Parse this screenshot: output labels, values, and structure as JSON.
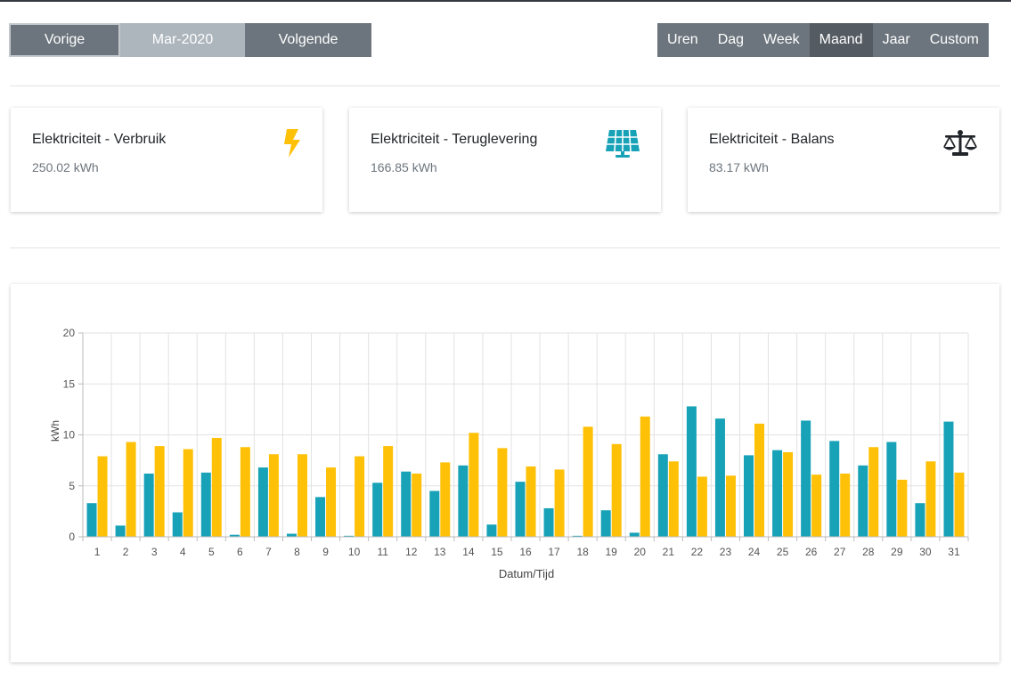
{
  "nav": {
    "prev_label": "Vorige",
    "period_label": "Mar-2020",
    "next_label": "Volgende"
  },
  "ranges": {
    "items": [
      "Uren",
      "Dag",
      "Week",
      "Maand",
      "Jaar",
      "Custom"
    ],
    "active": "Maand"
  },
  "cards": [
    {
      "title": "Elektriciteit - Verbruik",
      "value": "250.02 kWh",
      "icon": "lightning-bolt-icon",
      "icon_color": "#ffc107"
    },
    {
      "title": "Elektriciteit - Teruglevering",
      "value": "166.85 kWh",
      "icon": "solar-panel-icon",
      "icon_color": "#17a2b8"
    },
    {
      "title": "Elektriciteit - Balans",
      "value": "83.17 kWh",
      "icon": "balance-scale-icon",
      "icon_color": "#212529"
    }
  ],
  "colors": {
    "teal": "#17a2b8",
    "yellow": "#ffc107"
  },
  "chart_data": {
    "type": "bar",
    "xlabel": "Datum/Tijd",
    "ylabel": "kWh",
    "ylim": [
      0,
      20
    ],
    "yticks": [
      0,
      5,
      10,
      15,
      20
    ],
    "grid": true,
    "categories": [
      "1",
      "2",
      "3",
      "4",
      "5",
      "6",
      "7",
      "8",
      "9",
      "10",
      "11",
      "12",
      "13",
      "14",
      "15",
      "16",
      "17",
      "18",
      "19",
      "20",
      "21",
      "22",
      "23",
      "24",
      "25",
      "26",
      "27",
      "28",
      "29",
      "30",
      "31"
    ],
    "series": [
      {
        "color": "#17a2b8",
        "values": [
          3.3,
          1.1,
          6.2,
          2.4,
          6.3,
          0.2,
          6.8,
          0.3,
          3.9,
          0.1,
          5.3,
          6.4,
          4.5,
          7.0,
          1.2,
          5.4,
          2.8,
          0.1,
          2.6,
          0.4,
          8.1,
          12.8,
          11.6,
          8.0,
          8.5,
          11.4,
          9.4,
          7.0,
          9.3,
          3.3,
          11.3
        ]
      },
      {
        "color": "#ffc107",
        "values": [
          7.9,
          9.3,
          8.9,
          8.6,
          9.7,
          8.8,
          8.1,
          8.1,
          6.8,
          7.9,
          8.9,
          6.2,
          7.3,
          10.2,
          8.7,
          6.9,
          6.6,
          10.8,
          9.1,
          11.8,
          7.4,
          5.9,
          6.0,
          11.1,
          8.3,
          6.1,
          6.2,
          8.8,
          5.6,
          7.4,
          6.3
        ]
      }
    ]
  }
}
